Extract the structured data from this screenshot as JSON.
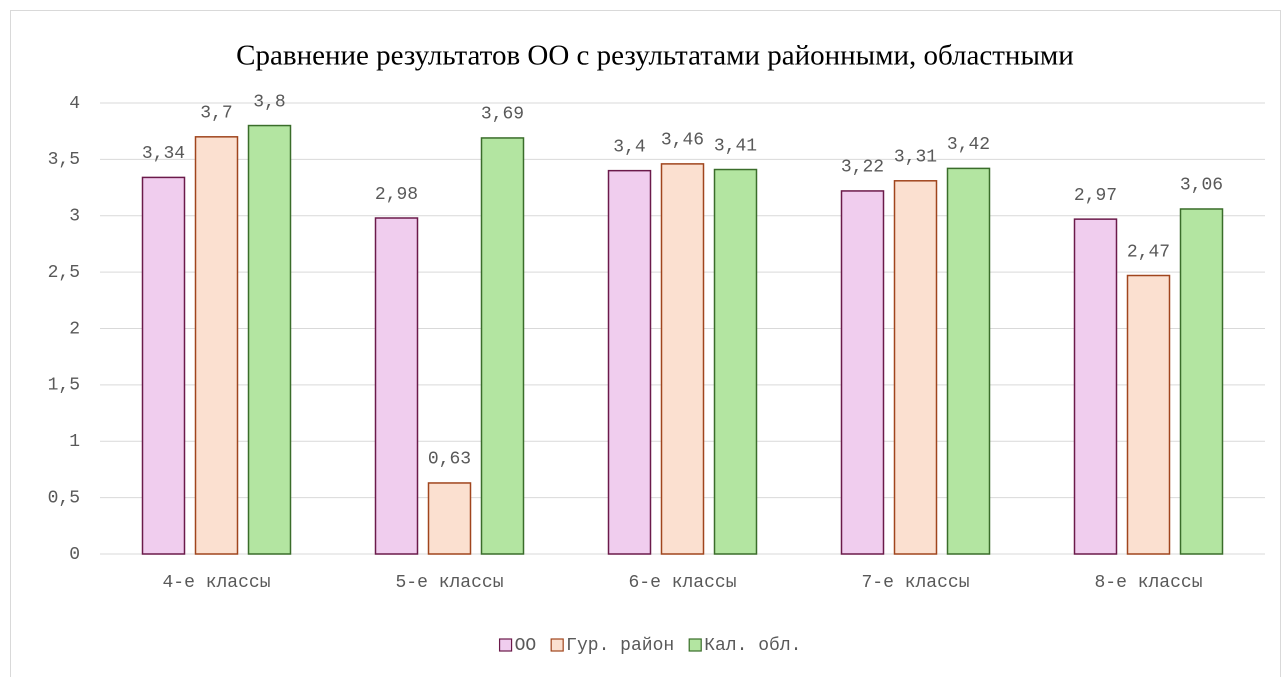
{
  "chart_data": {
    "type": "bar",
    "title": "Сравнение результатов ОО с результатами районными, областными",
    "categories": [
      "4-е классы",
      "5-е классы",
      "6-е классы",
      "7-е классы",
      "8-е классы"
    ],
    "series": [
      {
        "name": "ОО",
        "color": "#f0cdee",
        "edgecolor": "#6b1a4a",
        "values": [
          3.34,
          2.98,
          3.4,
          3.22,
          2.97
        ],
        "value_labels": [
          "3,34",
          "2,98",
          "3,4",
          "3,22",
          "2,97"
        ]
      },
      {
        "name": "Гур. район",
        "color": "#fbe0d0",
        "edgecolor": "#a0451d",
        "values": [
          3.7,
          0.63,
          3.46,
          3.31,
          2.47
        ],
        "value_labels": [
          "3,7",
          "0,63",
          "3,46",
          "3,31",
          "2,47"
        ]
      },
      {
        "name": "Кал. обл.",
        "color": "#b3e5a1",
        "edgecolor": "#3a6d2a",
        "values": [
          3.8,
          3.69,
          3.41,
          3.42,
          3.06
        ],
        "value_labels": [
          "3,8",
          "3,69",
          "3,41",
          "3,42",
          "3,06"
        ]
      }
    ],
    "ylim": [
      0,
      4
    ],
    "yticks": [
      0,
      {
        "value": 0.5,
        "label": "0,5"
      },
      1,
      {
        "value": 1.5,
        "label": "1,5"
      },
      2,
      {
        "value": 2.5,
        "label": "2,5"
      },
      3,
      {
        "value": 3.5,
        "label": "3,5"
      },
      4
    ],
    "grid": true,
    "legend": "bottom"
  }
}
